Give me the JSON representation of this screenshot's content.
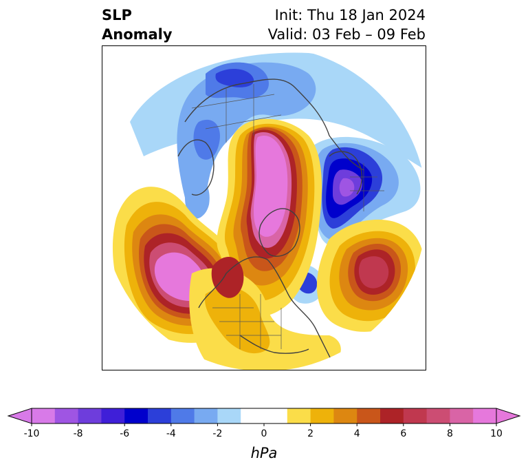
{
  "title": {
    "line1": "SLP",
    "line2": "Anomaly",
    "init": "Init: Thu 18 Jan 2024",
    "valid": "Valid: 03 Feb – 09 Feb"
  },
  "colorbar": {
    "label": "hPa",
    "min": -10,
    "max": 10,
    "tick_labels": [
      "-10",
      "-8",
      "-6",
      "-4",
      "-2",
      "0",
      "2",
      "4",
      "6",
      "8",
      "10"
    ],
    "tick_values": [
      -10,
      -8,
      -6,
      -4,
      -2,
      0,
      2,
      4,
      6,
      8,
      10
    ],
    "extend": "both",
    "levels": [
      -10,
      -9,
      -8,
      -7,
      -6,
      -5,
      -4,
      -3,
      -2,
      -1,
      1,
      2,
      3,
      4,
      5,
      6,
      7,
      8,
      9,
      10
    ],
    "colors": [
      "#d87ae8",
      "#9f55e3",
      "#6e3ddc",
      "#3f1fd8",
      "#0000cc",
      "#2c3fd9",
      "#4f7ae8",
      "#78aaf1",
      "#a9d7f8",
      "#ffffff",
      "#fbdd49",
      "#eeb20a",
      "#dd8711",
      "#c9561a",
      "#ad2327",
      "#c0384f",
      "#cc4d73",
      "#d964a6",
      "#e678dc"
    ],
    "under_color": "#d87ae8",
    "over_color": "#e678dc"
  },
  "map": {
    "projection": "north-polar-stereographic",
    "field": "sea level pressure anomaly"
  }
}
